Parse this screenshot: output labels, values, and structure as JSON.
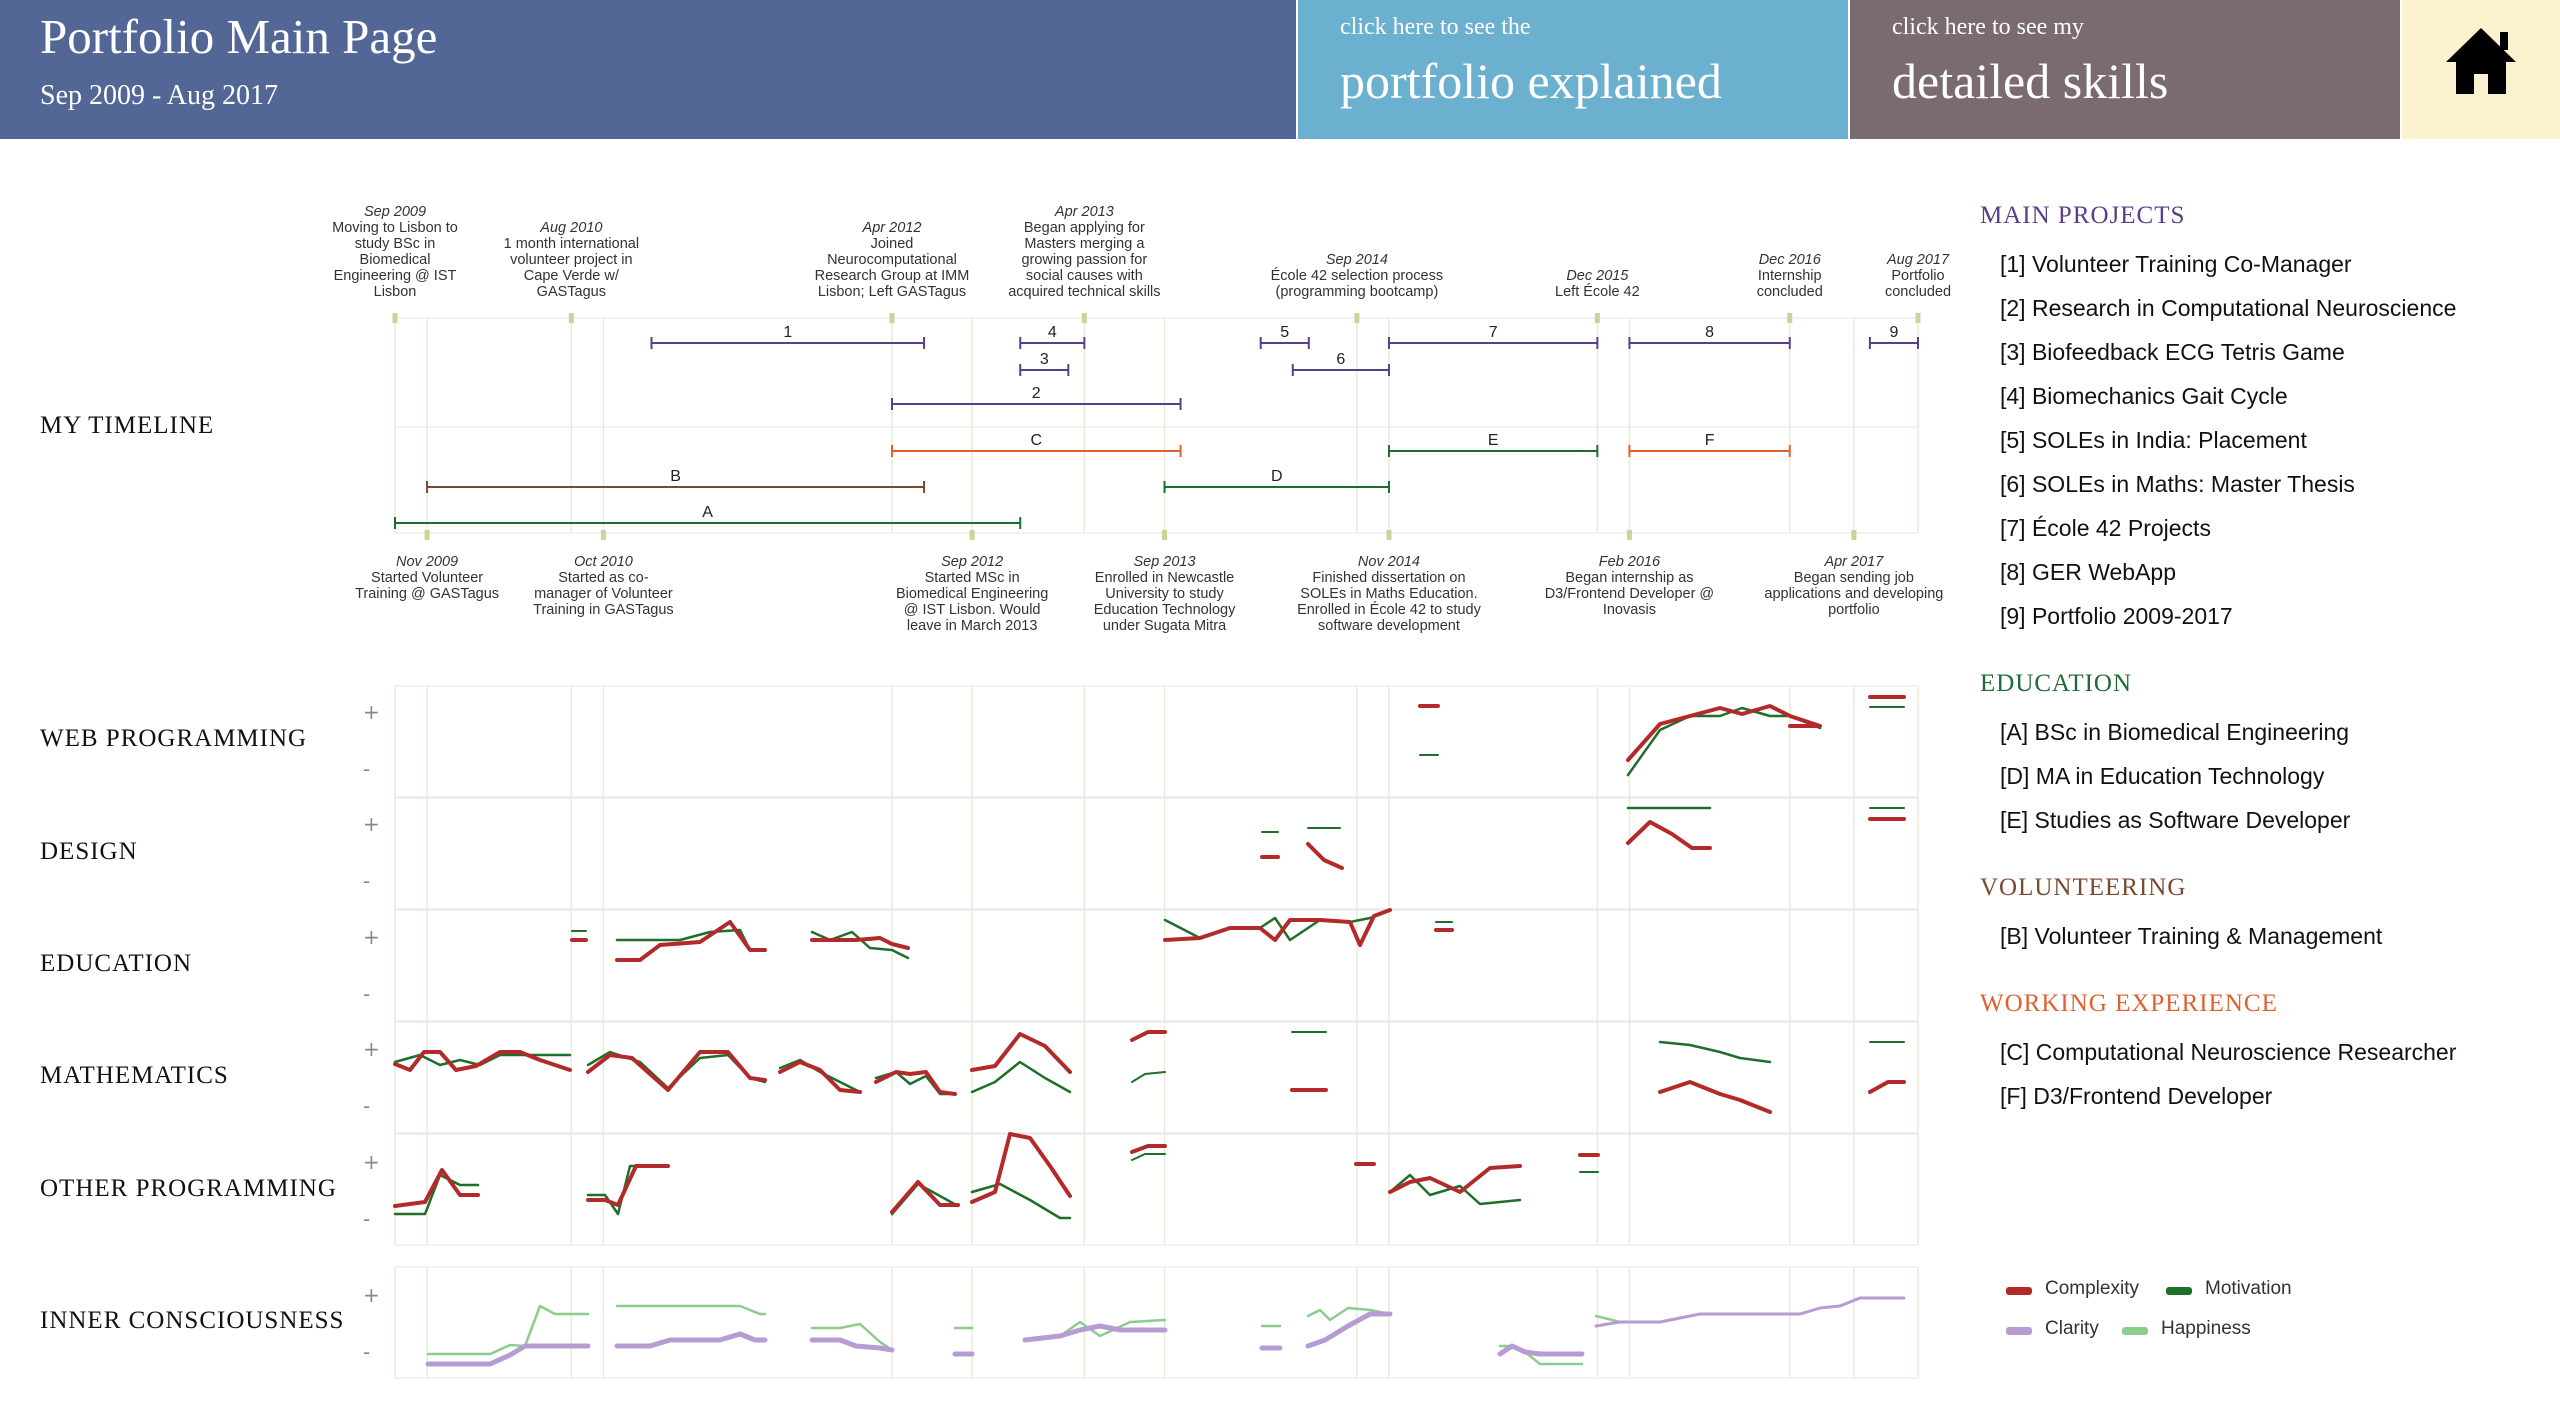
{
  "header": {
    "title": "Portfolio Main Page",
    "date_range": "Sep 2009 - Aug 2017",
    "explained_small": "click here to see the",
    "explained_big": "portfolio explained",
    "skills_small": "click here to see my",
    "skills_big": "detailed skills",
    "home_icon": "home-icon"
  },
  "colors": {
    "header_blue": "#536796",
    "explained_blue": "#6bb0cf",
    "skills_taupe": "#7a6b70",
    "home_cream": "#fcf2cf",
    "projects": "#5b3e8a",
    "education": "#1e6b33",
    "volunteering": "#7a4a30",
    "work": "#e0602e",
    "complexity": "#b22a2a",
    "motivation": "#1f6e2a",
    "clarity": "#b79bd3",
    "happiness": "#8ccc8c"
  },
  "row_labels": [
    "MY TIMELINE",
    "WEB PROGRAMMING",
    "DESIGN",
    "EDUCATION",
    "MATHEMATICS",
    "OTHER PROGRAMMING",
    "INNER CONSCIOUSNESS"
  ],
  "plus": "+",
  "minus": "-",
  "events_top": [
    {
      "date": "Sep 2009",
      "text": [
        "Moving to Lisbon to",
        "study BSc in",
        "Biomedical",
        "Engineering @ IST",
        "Lisbon"
      ]
    },
    {
      "date": "Aug 2010",
      "text": [
        "1 month international",
        "volunteer project in",
        "Cape Verde w/",
        "GASTagus"
      ]
    },
    {
      "date": "Apr 2012",
      "text": [
        "Joined",
        "Neurocomputational",
        "Research Group at IMM",
        "Lisbon; Left GASTagus"
      ]
    },
    {
      "date": "Apr 2013",
      "text": [
        "Began applying for",
        "Masters merging a",
        "growing passion for",
        "social causes with",
        "acquired technical skills"
      ]
    },
    {
      "date": "Sep 2014",
      "text": [
        "École 42 selection process",
        "(programming bootcamp)"
      ]
    },
    {
      "date": "Dec 2015",
      "text": [
        "Left École 42"
      ]
    },
    {
      "date": "Dec 2016",
      "text": [
        "Internship",
        "concluded"
      ]
    },
    {
      "date": "Aug 2017",
      "text": [
        "Portfolio",
        "concluded"
      ]
    }
  ],
  "events_bottom": [
    {
      "date": "Nov 2009",
      "text": [
        "Started Volunteer",
        "Training @ GASTagus"
      ]
    },
    {
      "date": "Oct 2010",
      "text": [
        "Started as co-",
        "manager of Volunteer",
        "Training in GASTagus"
      ]
    },
    {
      "date": "Sep 2012",
      "text": [
        "Started MSc in",
        "Biomedical Engineering",
        "@ IST Lisbon. Would",
        "leave in March 2013"
      ]
    },
    {
      "date": "Sep 2013",
      "text": [
        "Enrolled in Newcastle",
        "University to study",
        "Education Technology",
        "under Sugata Mitra"
      ]
    },
    {
      "date": "Nov 2014",
      "text": [
        "Finished dissertation on",
        "SOLEs in Maths Education.",
        "Enrolled in École 42 to study",
        "software development"
      ]
    },
    {
      "date": "Feb 2016",
      "text": [
        "Began internship as",
        "D3/Frontend Developer @",
        "Inovasis"
      ]
    },
    {
      "date": "Apr 2017",
      "text": [
        "Began sending job",
        "applications and developing",
        "portfolio"
      ]
    }
  ],
  "timeline_bars": [
    {
      "label": "1",
      "start": "Jan 2011",
      "end": "Jun 2012",
      "category": "projects"
    },
    {
      "label": "4",
      "start": "Dec 2012",
      "end": "Apr 2013",
      "category": "projects"
    },
    {
      "label": "3",
      "start": "Dec 2012",
      "end": "Mar 2013",
      "category": "projects"
    },
    {
      "label": "2",
      "start": "Apr 2012",
      "end": "Oct 2013",
      "category": "projects"
    },
    {
      "label": "5",
      "start": "Mar 2014",
      "end": "Jun 2014",
      "category": "projects"
    },
    {
      "label": "6",
      "start": "May 2014",
      "end": "Nov 2014",
      "category": "projects"
    },
    {
      "label": "7",
      "start": "Nov 2014",
      "end": "Dec 2015",
      "category": "projects"
    },
    {
      "label": "8",
      "start": "Feb 2016",
      "end": "Dec 2016",
      "category": "projects"
    },
    {
      "label": "9",
      "start": "May 2017",
      "end": "Aug 2017",
      "category": "projects"
    },
    {
      "label": "C",
      "start": "Apr 2012",
      "end": "Oct 2013",
      "category": "work"
    },
    {
      "label": "E",
      "start": "Nov 2014",
      "end": "Dec 2015",
      "category": "education"
    },
    {
      "label": "F",
      "start": "Feb 2016",
      "end": "Dec 2016",
      "category": "work"
    },
    {
      "label": "B",
      "start": "Nov 2009",
      "end": "Jun 2012",
      "category": "volunteering"
    },
    {
      "label": "D",
      "start": "Sep 2013",
      "end": "Nov 2014",
      "category": "education"
    },
    {
      "label": "A",
      "start": "Sep 2009",
      "end": "Dec 2012",
      "category": "education"
    }
  ],
  "legend": {
    "main_projects": {
      "title": "MAIN PROJECTS",
      "items": [
        "[1] Volunteer Training Co-Manager",
        "[2] Research in Computational Neuroscience",
        "[3] Biofeedback ECG Tetris Game",
        "[4] Biomechanics Gait Cycle",
        "[5] SOLEs in India: Placement",
        "[6] SOLEs in Maths: Master Thesis",
        "[7] École 42 Projects",
        "[8] GER WebApp",
        "[9] Portfolio 2009-2017"
      ]
    },
    "education": {
      "title": "EDUCATION",
      "items": [
        "[A] BSc in Biomedical Engineering",
        "[D] MA in Education Technology",
        "[E] Studies as Software Developer"
      ]
    },
    "volunteering": {
      "title": "VOLUNTEERING",
      "items": [
        "[B] Volunteer Training & Management"
      ]
    },
    "working": {
      "title": "WORKING EXPERIENCE",
      "items": [
        "[C] Computational Neuroscience Researcher",
        "[F] D3/Frontend Developer"
      ]
    }
  },
  "line_key": [
    "Complexity",
    "Motivation",
    "Clarity",
    "Happiness"
  ]
}
